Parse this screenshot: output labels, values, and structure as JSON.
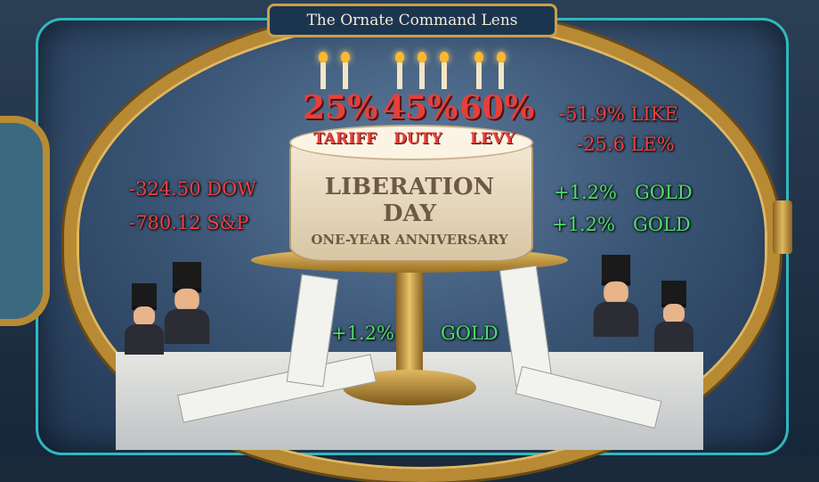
{
  "header": {
    "title": "The Ornate Command Lens"
  },
  "cake": {
    "rates": [
      {
        "value": "25%",
        "label": "TARIFF"
      },
      {
        "value": "45%",
        "label": "DUTY"
      },
      {
        "value": "60%",
        "label": "LEVY"
      }
    ],
    "title": "LIBERATION DAY",
    "subtitle": "ONE-YEAR ANNIVERSARY"
  },
  "tickers_left": [
    "-324.50 DOW",
    "-780.12 S&P"
  ],
  "tickers_right_red": [
    "-51.9% LIKE",
    "-25.6 LE%"
  ],
  "tickers_right_green": [
    "+1.2%   GOLD",
    "+1.2%   GOLD"
  ],
  "tickers_center": [
    "+1.2%",
    "GOLD"
  ],
  "colors": {
    "loss": "#ee4242",
    "gain": "#4fdc6a",
    "brass": "#b88a34",
    "accent": "#2fb8c0"
  }
}
